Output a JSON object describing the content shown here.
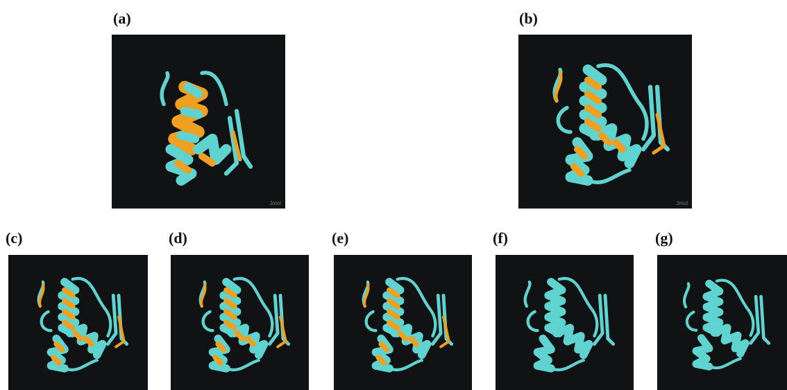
{
  "panels": [
    {
      "label": "(a)",
      "watermark": "Jmol"
    },
    {
      "label": "(b)",
      "watermark": "Jmol"
    },
    {
      "label": "(c)"
    },
    {
      "label": "(d)"
    },
    {
      "label": "(e)"
    },
    {
      "label": "(f)"
    },
    {
      "label": "(g)"
    }
  ]
}
